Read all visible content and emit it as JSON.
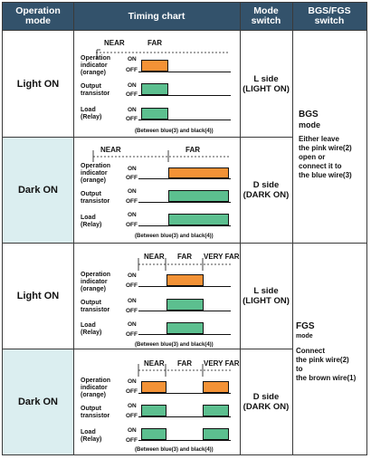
{
  "header": {
    "operation_mode": "Operation\nmode",
    "timing_chart": "Timing chart",
    "mode_switch": "Mode\nswitch",
    "bgs_fgs_switch": "BGS/FGS\nswitch"
  },
  "labels": {
    "near": "NEAR",
    "far": "FAR",
    "very_far": "VERY FAR",
    "on": "ON",
    "off": "OFF",
    "indicator": "Operation\nindicator\n(orange)",
    "output": "Output\ntransistor",
    "load": "Load\n(Relay)",
    "note": "(Between blue(3) and black(4))"
  },
  "rows": [
    {
      "mode": "Light ON",
      "switch": "L side\n(LIGHT ON)"
    },
    {
      "mode": "Dark ON",
      "switch": "D side\n(DARK ON)"
    },
    {
      "mode": "Light ON",
      "switch": "L side\n(LIGHT ON)"
    },
    {
      "mode": "Dark ON",
      "switch": "D side\n(DARK ON)"
    }
  ],
  "bgs": {
    "title": "BGS",
    "subtitle": "mode",
    "text": "Either leave\nthe pink wire(2)\nopen or\nconnect it to\nthe blue wire(3)"
  },
  "fgs": {
    "title": "FGS",
    "subtitle": "mode",
    "text": "Connect\nthe pink wire(2)\nto\nthe brown wire(1)"
  },
  "colors": {
    "header": "#33526b",
    "orange": "#f39236",
    "green": "#5cbf8f",
    "teal_bg": "#dbeef0"
  }
}
